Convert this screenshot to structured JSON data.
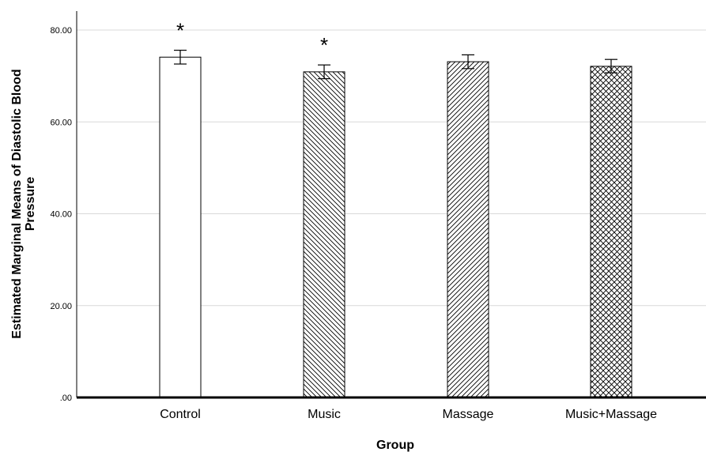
{
  "chart_data": {
    "type": "bar",
    "categories": [
      "Control",
      "Music",
      "Massage",
      "Music+Massage"
    ],
    "values": [
      74.1,
      70.9,
      73.1,
      72.1
    ],
    "error_low": [
      72.6,
      69.4,
      71.6,
      70.7
    ],
    "error_high": [
      75.6,
      72.4,
      74.6,
      73.6
    ],
    "patterns": [
      "none",
      "back-diagonal",
      "forward-diagonal",
      "crosshatch"
    ],
    "annotations": [
      "*",
      "*",
      "",
      ""
    ],
    "xlabel": "Group",
    "ylabel_lines": [
      "Estimated Marginal Means of Diastolic Blood",
      "Pressure"
    ],
    "yticks": [
      ".00",
      "20.00",
      "40.00",
      "60.00",
      "80.00"
    ],
    "ylim": [
      0,
      80
    ],
    "grid": true,
    "colors": {
      "bar_fill": "#ffffff",
      "bar_stroke": "#000000",
      "grid": "#d9d9d9",
      "axis": "#000000"
    }
  }
}
